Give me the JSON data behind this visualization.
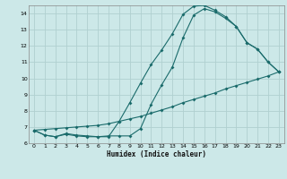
{
  "xlabel": "Humidex (Indice chaleur)",
  "xlim": [
    -0.5,
    23.5
  ],
  "ylim": [
    6,
    14.5
  ],
  "yticks": [
    6,
    7,
    8,
    9,
    10,
    11,
    12,
    13,
    14
  ],
  "xticks": [
    0,
    1,
    2,
    3,
    4,
    5,
    6,
    7,
    8,
    9,
    10,
    11,
    12,
    13,
    14,
    15,
    16,
    17,
    18,
    19,
    20,
    21,
    22,
    23
  ],
  "bg_color": "#cce8e8",
  "grid_color": "#b0d0d0",
  "line_color": "#1a6b6b",
  "line1_x": [
    0,
    1,
    2,
    3,
    4,
    5,
    6,
    7,
    8,
    9,
    10,
    11,
    12,
    13,
    14,
    15,
    16,
    17,
    18,
    19,
    20,
    21,
    22,
    23
  ],
  "line1_y": [
    6.8,
    6.85,
    6.9,
    6.95,
    7.0,
    7.05,
    7.1,
    7.2,
    7.35,
    7.5,
    7.65,
    7.85,
    8.05,
    8.25,
    8.5,
    8.7,
    8.9,
    9.1,
    9.35,
    9.55,
    9.75,
    9.95,
    10.15,
    10.4
  ],
  "line2_x": [
    0,
    1,
    2,
    3,
    4,
    5,
    6,
    7,
    8,
    9,
    10,
    11,
    12,
    13,
    14,
    15,
    16,
    17,
    18,
    19,
    20,
    21,
    22,
    23
  ],
  "line2_y": [
    6.8,
    6.5,
    6.4,
    6.55,
    6.45,
    6.4,
    6.4,
    6.4,
    7.35,
    8.5,
    9.7,
    10.85,
    11.75,
    12.75,
    13.95,
    14.45,
    14.5,
    14.2,
    13.8,
    13.2,
    12.2,
    11.8,
    11.0,
    10.4
  ],
  "line3_x": [
    0,
    1,
    2,
    3,
    4,
    5,
    6,
    7,
    8,
    9,
    10,
    11,
    12,
    13,
    14,
    15,
    16,
    17,
    18,
    19,
    20,
    21,
    22,
    23
  ],
  "line3_y": [
    6.8,
    6.5,
    6.4,
    6.6,
    6.5,
    6.45,
    6.4,
    6.45,
    6.45,
    6.45,
    6.9,
    8.4,
    9.6,
    10.7,
    12.5,
    13.9,
    14.3,
    14.1,
    13.7,
    13.2,
    12.2,
    11.8,
    11.0,
    10.4
  ]
}
